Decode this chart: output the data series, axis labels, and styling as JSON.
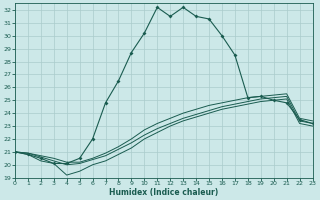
{
  "xlabel": "Humidex (Indice chaleur)",
  "xlim": [
    0,
    23
  ],
  "ylim": [
    19,
    32.5
  ],
  "yticks": [
    19,
    20,
    21,
    22,
    23,
    24,
    25,
    26,
    27,
    28,
    29,
    30,
    31,
    32
  ],
  "xticks": [
    0,
    1,
    2,
    3,
    4,
    5,
    6,
    7,
    8,
    9,
    10,
    11,
    12,
    13,
    14,
    15,
    16,
    17,
    18,
    19,
    20,
    21,
    22,
    23
  ],
  "bg_color": "#cce8e8",
  "grid_color": "#aacccc",
  "line_color": "#1a5c50",
  "line1_y": [
    21.0,
    20.8,
    20.5,
    20.1,
    20.1,
    20.5,
    22.0,
    24.8,
    26.5,
    28.7,
    30.2,
    32.2,
    31.5,
    32.2,
    31.5,
    31.3,
    30.0,
    28.5,
    25.2,
    25.3,
    25.0,
    24.8,
    23.5,
    23.2
  ],
  "line2_y": [
    21.0,
    20.8,
    20.3,
    20.1,
    19.2,
    19.5,
    20.0,
    20.3,
    20.8,
    21.3,
    22.0,
    22.5,
    23.0,
    23.4,
    23.7,
    24.0,
    24.3,
    24.5,
    24.7,
    24.9,
    25.0,
    25.1,
    23.2,
    23.0
  ],
  "line3_y": [
    21.0,
    20.9,
    20.6,
    20.3,
    20.0,
    20.1,
    20.4,
    20.7,
    21.2,
    21.7,
    22.3,
    22.8,
    23.2,
    23.6,
    23.9,
    24.2,
    24.5,
    24.7,
    24.9,
    25.1,
    25.2,
    25.3,
    23.4,
    23.2
  ],
  "line4_y": [
    21.0,
    20.9,
    20.7,
    20.5,
    20.2,
    20.2,
    20.5,
    20.9,
    21.4,
    22.0,
    22.7,
    23.2,
    23.6,
    24.0,
    24.3,
    24.6,
    24.8,
    25.0,
    25.2,
    25.3,
    25.4,
    25.5,
    23.6,
    23.4
  ]
}
